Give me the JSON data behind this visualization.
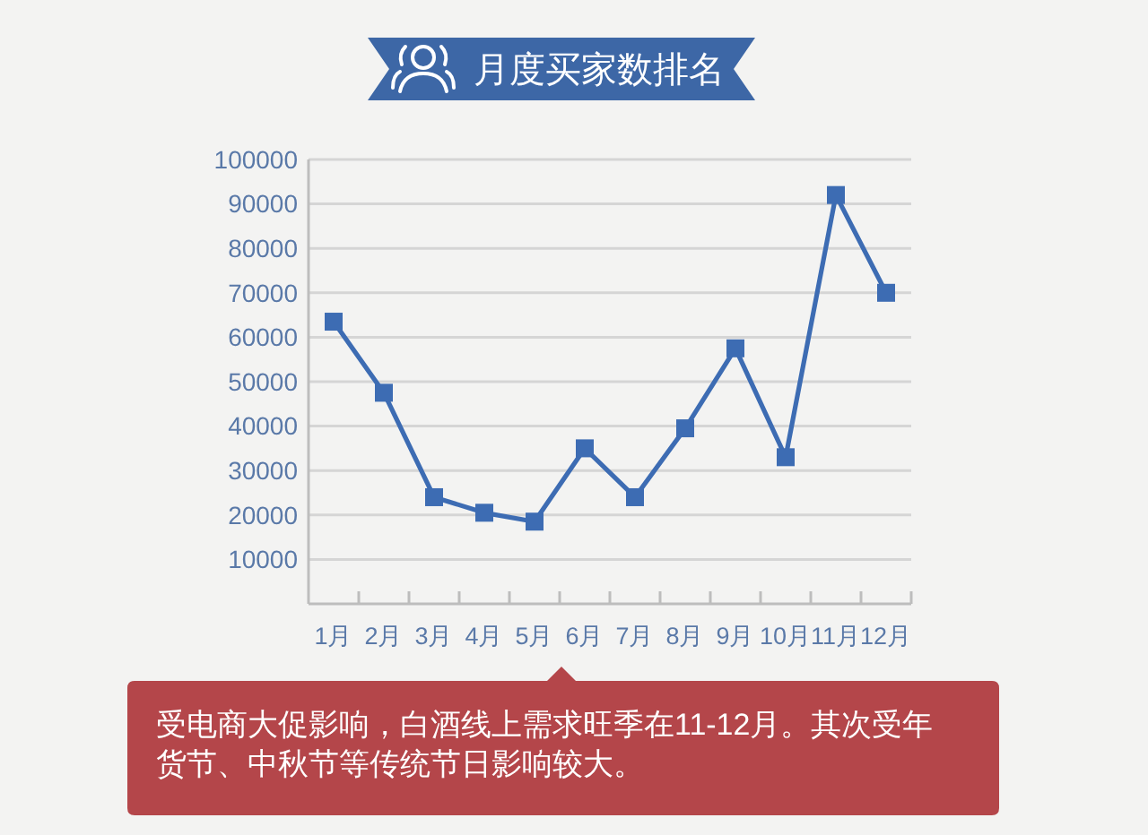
{
  "chart_data": {
    "type": "line",
    "title": "月度买家数排名",
    "categories": [
      "1月",
      "2月",
      "3月",
      "4月",
      "5月",
      "6月",
      "7月",
      "8月",
      "9月",
      "10月",
      "11月",
      "12月"
    ],
    "values": [
      63500,
      47500,
      24000,
      20500,
      18500,
      35000,
      24000,
      39500,
      57500,
      33000,
      92000,
      70000
    ],
    "color": "#3d6cb3",
    "ylim": [
      0,
      100000
    ],
    "yticks": [
      10000,
      20000,
      30000,
      40000,
      50000,
      60000,
      70000,
      80000,
      90000,
      100000
    ],
    "grid": "y",
    "marker": "square",
    "annotations": [
      "受电商大促影响，白酒线上需求旺季在11-12月。其次受年货节、中秋节等传统节日影响较大。"
    ]
  }
}
